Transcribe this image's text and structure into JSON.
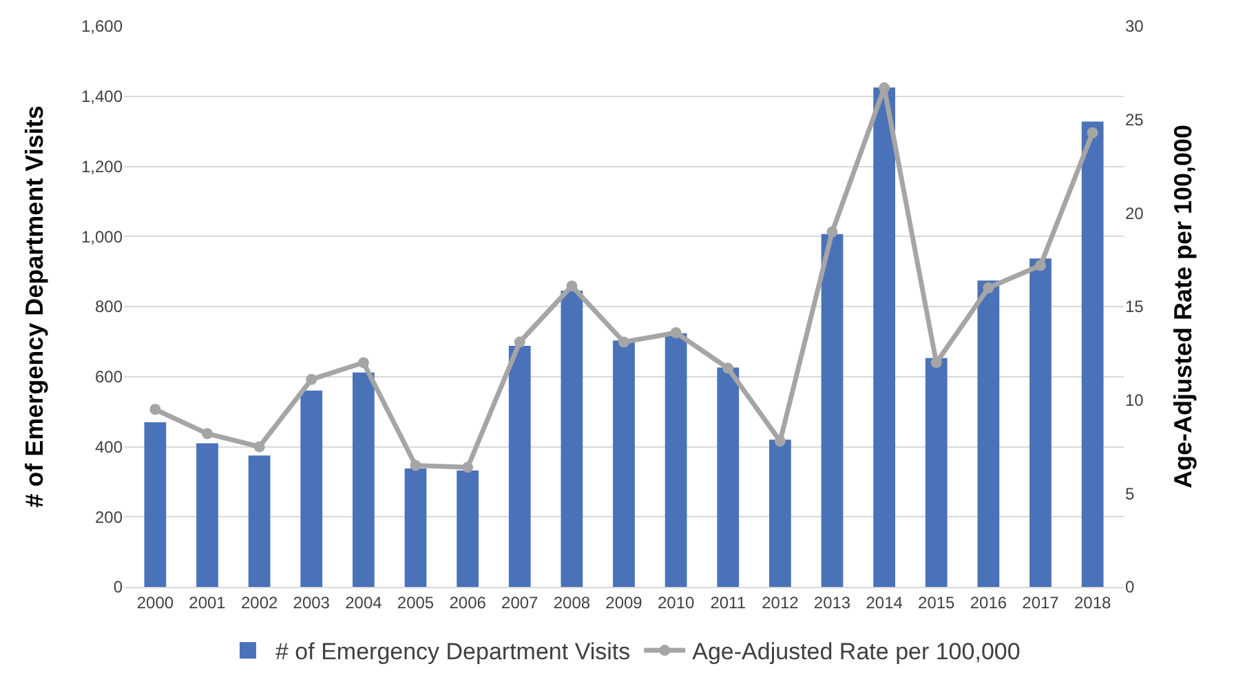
{
  "chart_data": {
    "type": "bar",
    "ylabel": "# of Emergency Department Visits",
    "y2label": "Age-Adjusted Rate per 100,000",
    "categories": [
      "2000",
      "2001",
      "2002",
      "2003",
      "2004",
      "2005",
      "2006",
      "2007",
      "2008",
      "2009",
      "2010",
      "2011",
      "2012",
      "2013",
      "2014",
      "2015",
      "2016",
      "2017",
      "2018"
    ],
    "series": [
      {
        "name": "# of Emergency Department Visits",
        "color": "#4a72b8",
        "values": [
          470,
          410,
          375,
          560,
          612,
          338,
          332,
          688,
          845,
          703,
          724,
          626,
          420,
          1007,
          1425,
          653,
          874,
          937,
          1328
        ]
      },
      {
        "name": "Age-Adjusted Rate per 100,000",
        "type": "line",
        "axis": "y2",
        "color": "#a5a5a5",
        "marker": "circle",
        "values": [
          9.5,
          8.2,
          7.5,
          11.1,
          12.0,
          6.5,
          6.4,
          13.1,
          16.1,
          13.1,
          13.6,
          11.7,
          7.8,
          19.0,
          26.7,
          12.0,
          16.0,
          17.2,
          24.3
        ]
      }
    ],
    "ylim": [
      0,
      1600
    ],
    "yticks": [
      0,
      {
        "value": 200,
        "label": "200"
      },
      {
        "value": 400,
        "label": "400"
      },
      {
        "value": 600,
        "label": "600"
      },
      {
        "value": 800,
        "label": "800"
      },
      {
        "value": 1000,
        "label": "1,000"
      },
      {
        "value": 1200,
        "label": "1,200"
      },
      {
        "value": 1400,
        "label": "1,400"
      },
      {
        "value": 1600,
        "label": "1,600"
      }
    ],
    "y2lim": [
      0,
      30
    ],
    "y2ticks": [
      0,
      5,
      10,
      15,
      20,
      25,
      30
    ],
    "grid": "y",
    "legend": "bottom"
  }
}
